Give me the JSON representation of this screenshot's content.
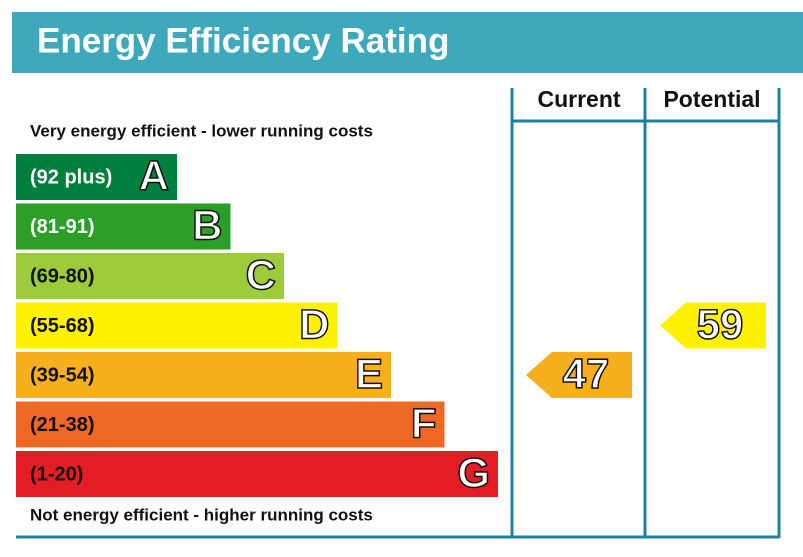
{
  "chart_data": {
    "type": "epc",
    "title": "Energy Efficiency Rating",
    "top_note": "Very energy efficient - lower running costs",
    "bottom_note": "Not energy efficient - higher running costs",
    "bands": [
      {
        "label": "(92 plus)",
        "letter": "A",
        "color": "#007f3d",
        "text_color": "#ffffff"
      },
      {
        "label": "(81-91)",
        "letter": "B",
        "color": "#2c9f29",
        "text_color": "#ffffff"
      },
      {
        "label": "(69-80)",
        "letter": "C",
        "color": "#9dcb3c",
        "text_color": "#111111"
      },
      {
        "label": "(55-68)",
        "letter": "D",
        "color": "#fff200",
        "text_color": "#111111"
      },
      {
        "label": "(39-54)",
        "letter": "E",
        "color": "#f7af1d",
        "text_color": "#111111"
      },
      {
        "label": "(21-38)",
        "letter": "F",
        "color": "#ed6823",
        "text_color": "#111111"
      },
      {
        "label": "(1-20)",
        "letter": "G",
        "color": "#e31d23",
        "text_color": "#111111"
      }
    ],
    "series": [
      {
        "name": "Current",
        "color": "#f7af1d",
        "values": [
          47
        ]
      },
      {
        "name": "Potential",
        "color": "#fff200",
        "values": [
          59
        ]
      }
    ]
  }
}
